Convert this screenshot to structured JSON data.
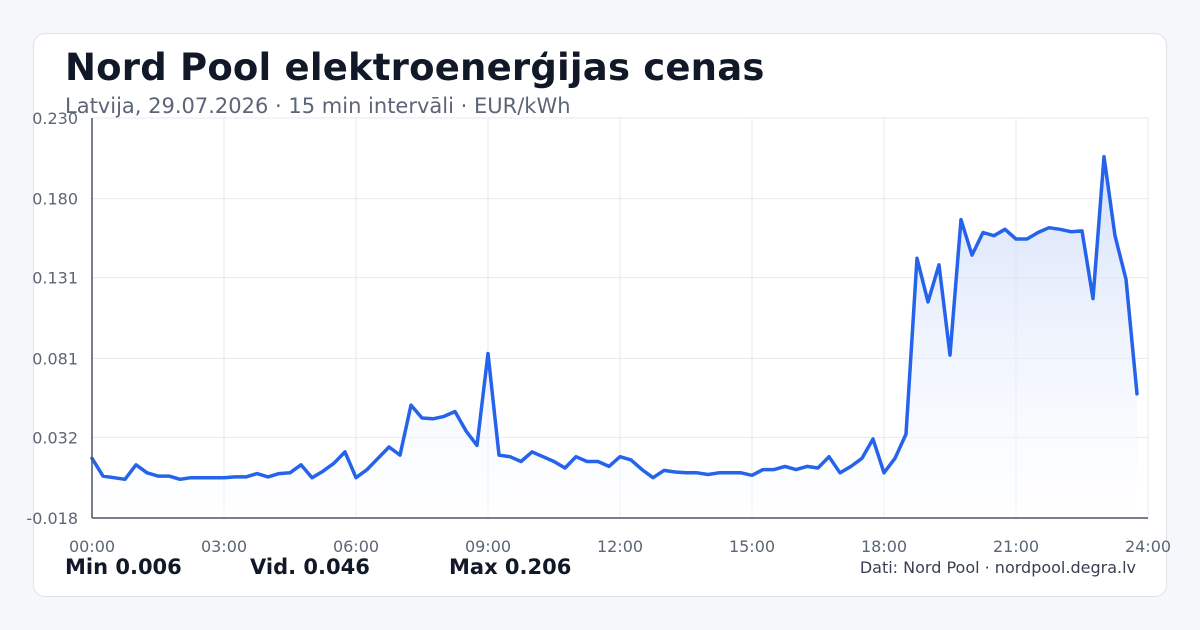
{
  "header": {
    "title": "Nord Pool elektroenerģijas cenas",
    "subtitle": "Latvija, 29.07.2026 · 15 min intervāli · EUR/kWh"
  },
  "stats": {
    "min": "Min 0.006",
    "avg": "Vid. 0.046",
    "max": "Max 0.206"
  },
  "footer": {
    "source": "Dati: Nord Pool · nordpool.degra.lv"
  },
  "colors": {
    "line": "#2563eb",
    "fill_top": "#c7d7f8",
    "grid": "#e7eaf0",
    "axis": "#4b5563",
    "tick_text": "#5b6577"
  },
  "chart_data": {
    "type": "area",
    "title": "",
    "xlabel": "",
    "ylabel": "",
    "grid": true,
    "xlim": [
      0,
      24
    ],
    "ylim": [
      -0.018,
      0.23
    ],
    "y_ticks": [
      -0.018,
      0.032,
      0.081,
      0.131,
      0.18,
      0.23
    ],
    "y_tick_labels": [
      "-0.018",
      "0.032",
      "0.081",
      "0.131",
      "0.180",
      "0.230"
    ],
    "x_ticks": [
      0,
      3,
      6,
      9,
      12,
      15,
      18,
      21,
      24
    ],
    "x_tick_labels": [
      "00:00",
      "03:00",
      "06:00",
      "09:00",
      "12:00",
      "15:00",
      "18:00",
      "21:00",
      "24:00"
    ],
    "series": [
      {
        "x": [
          0.0,
          0.25,
          0.5,
          0.75,
          1.0,
          1.25,
          1.5,
          1.75,
          2.0,
          2.25,
          2.5,
          2.75,
          3.0,
          3.25,
          3.5,
          3.75,
          4.0,
          4.25,
          4.5,
          4.75,
          5.0,
          5.25,
          5.5,
          5.75,
          6.0,
          6.25,
          6.5,
          6.75,
          7.0,
          7.25,
          7.5,
          7.75,
          8.0,
          8.25,
          8.5,
          8.75,
          9.0,
          9.25,
          9.5,
          9.75,
          10.0,
          10.25,
          10.5,
          10.75,
          11.0,
          11.25,
          11.5,
          11.75,
          12.0,
          12.25,
          12.5,
          12.75,
          13.0,
          13.25,
          13.5,
          13.75,
          14.0,
          14.25,
          14.5,
          14.75,
          15.0,
          15.25,
          15.5,
          15.75,
          16.0,
          16.25,
          16.5,
          16.75,
          17.0,
          17.25,
          17.5,
          17.75,
          18.0,
          18.25,
          18.5,
          18.75,
          19.0,
          19.25,
          19.5,
          19.75,
          20.0,
          20.25,
          20.5,
          20.75,
          21.0,
          21.25,
          21.5,
          21.75,
          22.0,
          22.25,
          22.5,
          22.75,
          23.0,
          23.25,
          23.5,
          23.75
        ],
        "values": [
          0.019,
          0.008,
          0.007,
          0.006,
          0.015,
          0.01,
          0.008,
          0.008,
          0.006,
          0.007,
          0.007,
          0.007,
          0.007,
          0.0075,
          0.0075,
          0.0095,
          0.0075,
          0.0095,
          0.01,
          0.015,
          0.007,
          0.011,
          0.016,
          0.023,
          0.007,
          0.012,
          0.019,
          0.026,
          0.021,
          0.052,
          0.044,
          0.0435,
          0.045,
          0.048,
          0.036,
          0.027,
          0.084,
          0.021,
          0.02,
          0.017,
          0.023,
          0.02,
          0.017,
          0.013,
          0.02,
          0.017,
          0.017,
          0.014,
          0.02,
          0.018,
          0.012,
          0.007,
          0.0115,
          0.0105,
          0.01,
          0.01,
          0.009,
          0.01,
          0.01,
          0.01,
          0.0085,
          0.012,
          0.012,
          0.014,
          0.012,
          0.014,
          0.013,
          0.02,
          0.01,
          0.014,
          0.019,
          0.031,
          0.01,
          0.019,
          0.034,
          0.143,
          0.116,
          0.139,
          0.083,
          0.167,
          0.145,
          0.159,
          0.157,
          0.161,
          0.155,
          0.155,
          0.159,
          0.162,
          0.161,
          0.1595,
          0.16,
          0.118,
          0.206,
          0.157,
          0.13,
          0.059
        ]
      }
    ]
  }
}
